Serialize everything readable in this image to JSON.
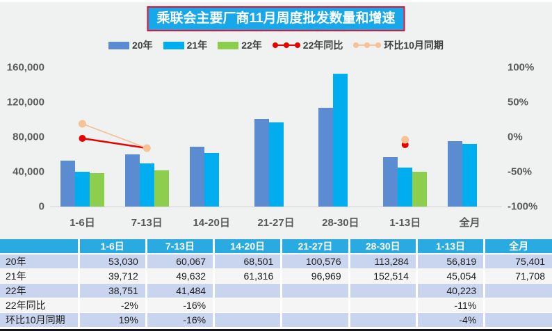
{
  "chart_data": {
    "type": "bar+line",
    "title": "乘联会主要厂商11月周度批发数量和增速",
    "categories": [
      "1-6日",
      "7-13日",
      "14-20日",
      "21-27日",
      "28-30日",
      "1-13日",
      "全月"
    ],
    "series": [
      {
        "key": "y20",
        "name": "20年",
        "type": "bar",
        "axis": "left",
        "color": "#5B8CD2",
        "values": [
          53030,
          60067,
          68501,
          100576,
          113284,
          56819,
          75401
        ]
      },
      {
        "key": "y21",
        "name": "21年",
        "type": "bar",
        "axis": "left",
        "color": "#00AEEF",
        "values": [
          39712,
          49632,
          61316,
          96969,
          152514,
          45054,
          71708
        ]
      },
      {
        "key": "y22",
        "name": "22年",
        "type": "bar",
        "axis": "left",
        "color": "#8DCE4E",
        "values": [
          38751,
          41484,
          null,
          null,
          null,
          40223,
          null
        ]
      },
      {
        "key": "yoy22",
        "name": "22年同比",
        "type": "line",
        "axis": "right",
        "color": "#E50500",
        "marker_color": "#E50500",
        "values": [
          -2,
          -16,
          null,
          null,
          null,
          -11,
          null
        ],
        "unit": "%"
      },
      {
        "key": "mom-oct",
        "name": "环比10月同期",
        "type": "line",
        "axis": "right",
        "color": "#F5BE93",
        "marker_color": "#F6C296",
        "values": [
          19,
          -16,
          null,
          null,
          null,
          -4,
          null
        ],
        "unit": "%"
      }
    ],
    "left_axis": {
      "min": 0,
      "max": 160000,
      "ticks": [
        "160,000",
        "120,000",
        "80,000",
        "40,000",
        "0"
      ]
    },
    "right_axis": {
      "min": -100,
      "max": 100,
      "ticks": [
        "100%",
        "50%",
        "0%",
        "-50%",
        "-100%"
      ]
    },
    "grid": "off",
    "legend_position": "top-center"
  },
  "table": {
    "columns": [
      "",
      "1-6日",
      "7-13日",
      "14-20日",
      "21-27日",
      "28-30日",
      "1-13日",
      "全月"
    ],
    "rows": [
      {
        "label": "20年",
        "values": [
          "53,030",
          "60,067",
          "68,501",
          "100,576",
          "113,284",
          "56,819",
          "75,401"
        ]
      },
      {
        "label": "21年",
        "values": [
          "39,712",
          "49,632",
          "61,316",
          "96,969",
          "152,514",
          "45,054",
          "71,708"
        ]
      },
      {
        "label": "22年",
        "values": [
          "38,751",
          "41,484",
          "",
          "",
          "",
          "40,223",
          ""
        ]
      },
      {
        "label": "22年同比",
        "values": [
          "-2%",
          "-16%",
          "",
          "",
          "",
          "-11%",
          ""
        ]
      },
      {
        "label": "环比10月同期",
        "values": [
          "19%",
          "-16%",
          "",
          "",
          "",
          "-4%",
          ""
        ]
      }
    ]
  },
  "colors": {
    "panel_bg": "#F0F1F1",
    "title_bg": "#18A8E9",
    "title_border": "#E8112D",
    "title_text": "#FFFFFF",
    "axis_text": "#595959",
    "legend_text": "#3F3F3F",
    "baseline": "#D2D2D2",
    "table_header_bg": "#29ABE2",
    "table_row_blue": "#C9D5EE",
    "table_row_light": "#F5F5F6",
    "table_bottom_border": "#15151D"
  }
}
